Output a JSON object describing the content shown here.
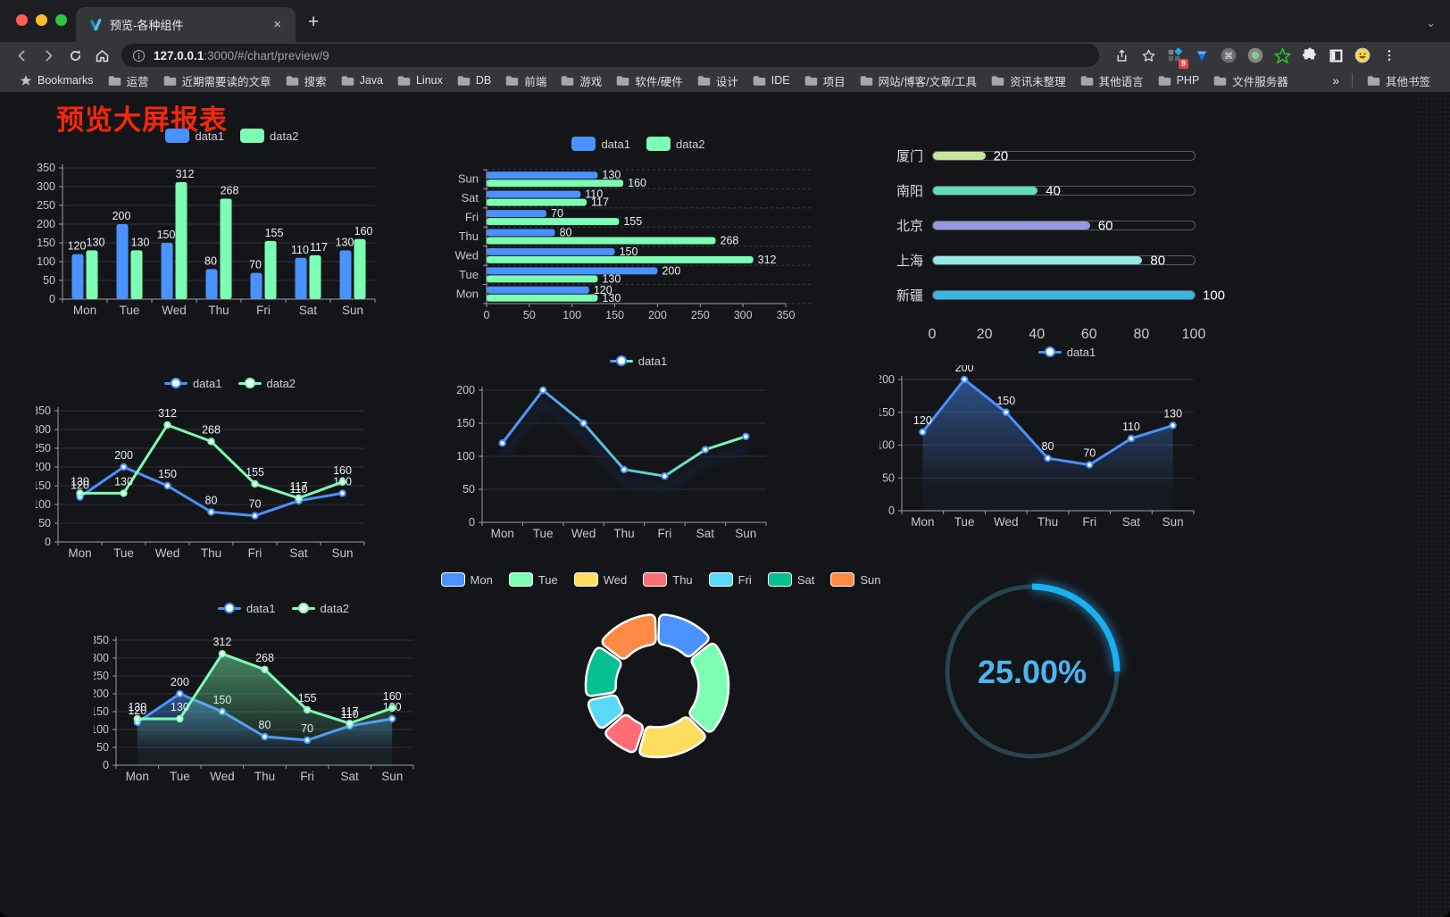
{
  "browser": {
    "tab_title": "预览-各种组件",
    "close_tab": "×",
    "new_tab": "+",
    "url_host": "127.0.0.1",
    "url_path": ":3000/#/chart/preview/9",
    "extension_badge": "9",
    "bookmarks_root_label": "Bookmarks",
    "bookmark_folders": [
      "运营",
      "近期需要读的文章",
      "搜索",
      "Java",
      "Linux",
      "DB",
      "前端",
      "游戏",
      "软件/硬件",
      "设计",
      "IDE",
      "项目",
      "网站/博客/文章/工具",
      "资讯未整理",
      "其他语言",
      "PHP",
      "文件服务器"
    ],
    "bookmarks_overflow": "»",
    "other_bookmarks_label": "其他书签"
  },
  "page": {
    "title": "预览大屏报表",
    "title_color": "#f5270b",
    "background": "#141519"
  },
  "palette": {
    "blue": "#4992ff",
    "green": "#7cffb2",
    "yellow": "#fddd60",
    "red": "#ff6e76",
    "cyan": "#58d9f9",
    "teal": "#05c091",
    "orange": "#ff8a45",
    "axis": "#9d9daa",
    "axis_label": "#c6c6d0",
    "grid": "#303038",
    "value_label": "#eceef2"
  },
  "chart_data": [
    {
      "type": "bar",
      "legend": [
        "data1",
        "data2"
      ],
      "categories": [
        "Mon",
        "Tue",
        "Wed",
        "Thu",
        "Fri",
        "Sat",
        "Sun"
      ],
      "series": [
        {
          "name": "data1",
          "color": "#4992ff",
          "values": [
            120,
            200,
            150,
            80,
            70,
            110,
            130
          ]
        },
        {
          "name": "data2",
          "color": "#7cffb2",
          "values": [
            130,
            130,
            312,
            268,
            155,
            117,
            160
          ]
        }
      ],
      "ylim": [
        0,
        350
      ],
      "ytick_step": 50,
      "labels": true,
      "legend_position": "top",
      "grid": true
    },
    {
      "type": "hbar",
      "legend": [
        "data1",
        "data2"
      ],
      "categories_top_to_bottom": [
        "Sun",
        "Sat",
        "Fri",
        "Thu",
        "Wed",
        "Tue",
        "Mon"
      ],
      "series": [
        {
          "name": "data1",
          "color": "#4992ff",
          "values_top_to_bottom": [
            130,
            110,
            70,
            80,
            150,
            200,
            120
          ]
        },
        {
          "name": "data2",
          "color": "#7cffb2",
          "values_top_to_bottom": [
            160,
            117,
            155,
            268,
            312,
            130,
            130
          ]
        }
      ],
      "xlim": [
        0,
        350
      ],
      "xtick_step": 50,
      "labels": true
    },
    {
      "type": "bar",
      "variant": "horizontal-progress",
      "items": [
        {
          "label": "厦门",
          "value": 20,
          "color": "#c8e59d"
        },
        {
          "label": "南阳",
          "value": 40,
          "color": "#62dfb2"
        },
        {
          "label": "北京",
          "value": 60,
          "color": "#9499e2"
        },
        {
          "label": "上海",
          "value": 80,
          "color": "#98e6e2"
        },
        {
          "label": "新疆",
          "value": 100,
          "color": "#38b7e6"
        }
      ],
      "xlim": [
        0,
        100
      ],
      "xticks": [
        0,
        20,
        40,
        60,
        80,
        100
      ]
    },
    {
      "type": "line",
      "legend": [
        "data1",
        "data2"
      ],
      "categories": [
        "Mon",
        "Tue",
        "Wed",
        "Thu",
        "Fri",
        "Sat",
        "Sun"
      ],
      "series": [
        {
          "name": "data1",
          "color": "#4992ff",
          "values": [
            120,
            200,
            150,
            80,
            70,
            110,
            130
          ]
        },
        {
          "name": "data2",
          "color": "#7cffb2",
          "values": [
            130,
            130,
            312,
            268,
            155,
            117,
            160
          ]
        }
      ],
      "ylim": [
        0,
        350
      ],
      "ytick_step": 50,
      "labels": true
    },
    {
      "type": "line",
      "legend": [
        "data1"
      ],
      "categories": [
        "Mon",
        "Tue",
        "Wed",
        "Thu",
        "Fri",
        "Sat",
        "Sun"
      ],
      "series": [
        {
          "name": "data1",
          "color": "#4992ff",
          "gradient": [
            "#4992ff",
            "#56c8d8",
            "#7cffb2"
          ],
          "values": [
            120,
            200,
            150,
            80,
            70,
            110,
            130
          ]
        }
      ],
      "ylim": [
        0,
        200
      ],
      "ytick_step": 50,
      "labels": false,
      "shadow": true
    },
    {
      "type": "area",
      "legend": [
        "data1"
      ],
      "categories": [
        "Mon",
        "Tue",
        "Wed",
        "Thu",
        "Fri",
        "Sat",
        "Sun"
      ],
      "series": [
        {
          "name": "data1",
          "color": "#4992ff",
          "values": [
            120,
            200,
            150,
            80,
            70,
            110,
            130
          ],
          "area": true
        }
      ],
      "ylim": [
        0,
        200
      ],
      "ytick_step": 50,
      "labels": true
    },
    {
      "type": "area",
      "legend": [
        "data1",
        "data2"
      ],
      "categories": [
        "Mon",
        "Tue",
        "Wed",
        "Thu",
        "Fri",
        "Sat",
        "Sun"
      ],
      "series": [
        {
          "name": "data1",
          "color": "#4992ff",
          "values": [
            120,
            200,
            150,
            80,
            70,
            110,
            130
          ],
          "area": true
        },
        {
          "name": "data2",
          "color": "#7cffb2",
          "values": [
            130,
            130,
            312,
            268,
            155,
            117,
            160
          ],
          "area": true
        }
      ],
      "ylim": [
        0,
        350
      ],
      "ytick_step": 50,
      "labels": true
    },
    {
      "type": "pie",
      "inner_radius_ratio": 0.58,
      "legend_position": "top",
      "slices": [
        {
          "label": "Mon",
          "value": 120,
          "color": "#4992ff"
        },
        {
          "label": "Tue",
          "value": 200,
          "color": "#7cffb2"
        },
        {
          "label": "Wed",
          "value": 150,
          "color": "#fddd60"
        },
        {
          "label": "Thu",
          "value": 80,
          "color": "#ff6e76"
        },
        {
          "label": "Fri",
          "value": 70,
          "color": "#58d9f9"
        },
        {
          "label": "Sat",
          "value": 110,
          "color": "#05c091"
        },
        {
          "label": "Sun",
          "value": 130,
          "color": "#ff8a45"
        }
      ],
      "border_color": "#ffffff"
    },
    {
      "type": "gauge",
      "value_percent": 25,
      "display": "25.00%",
      "progress_color": "#1ab0f0",
      "track_color": "#27464f",
      "text_color": "#4ab5ee"
    }
  ]
}
